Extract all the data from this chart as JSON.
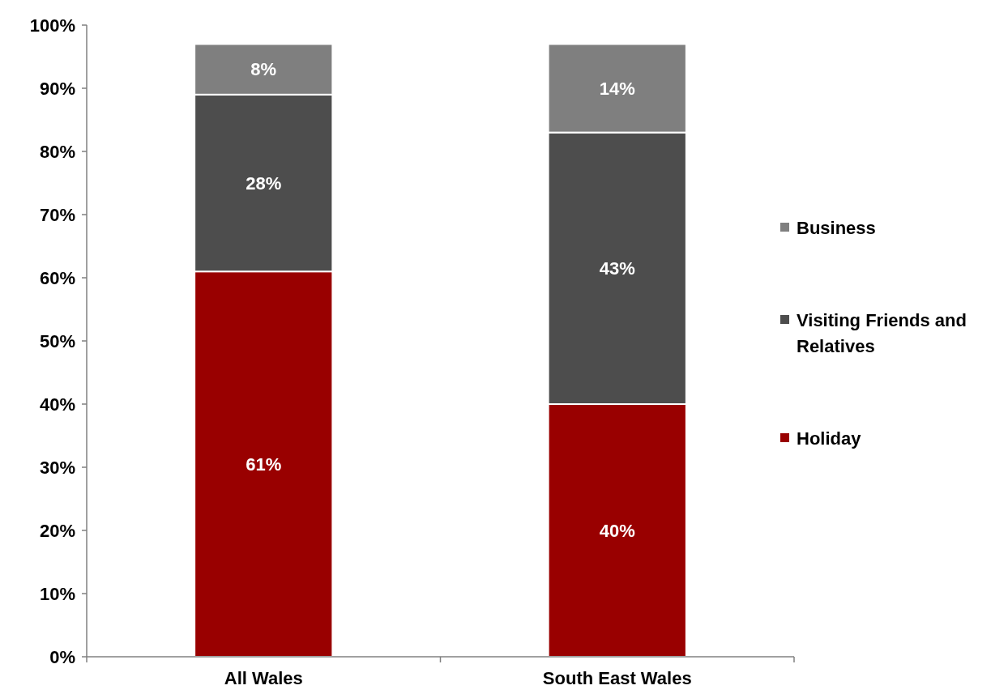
{
  "chart_data": {
    "type": "bar",
    "stacked": true,
    "categories": [
      "All Wales",
      "South East Wales"
    ],
    "series": [
      {
        "name": "Holiday",
        "color": "#990000",
        "values": [
          61,
          40
        ],
        "value_labels": [
          "61%",
          "40%"
        ]
      },
      {
        "name": "Visiting Friends and Relatives",
        "color": "#4d4d4d",
        "values": [
          28,
          43
        ],
        "value_labels": [
          "28%",
          "43%"
        ]
      },
      {
        "name": "Business",
        "color": "#7f7f7f",
        "values": [
          8,
          14
        ],
        "value_labels": [
          "8%",
          "14%"
        ]
      }
    ],
    "ylim": [
      0,
      100
    ],
    "yticks": [
      {
        "value": 0,
        "label": "0%"
      },
      {
        "value": 10,
        "label": "10%"
      },
      {
        "value": 20,
        "label": "20%"
      },
      {
        "value": 30,
        "label": "30%"
      },
      {
        "value": 40,
        "label": "40%"
      },
      {
        "value": 50,
        "label": "50%"
      },
      {
        "value": 60,
        "label": "60%"
      },
      {
        "value": 70,
        "label": "70%"
      },
      {
        "value": 80,
        "label": "80%"
      },
      {
        "value": 90,
        "label": "90%"
      },
      {
        "value": 100,
        "label": "100%"
      }
    ],
    "grid": false,
    "legend": "right"
  }
}
